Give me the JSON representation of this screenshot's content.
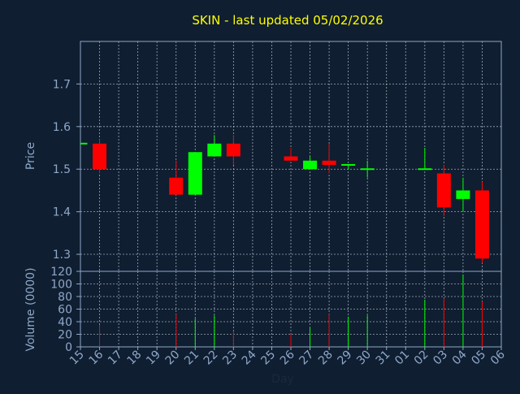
{
  "chart_data": {
    "type": "candlestick",
    "title": "SKIN - last updated 05/02/2026",
    "xlabel": "Day",
    "price_ylabel": "Price",
    "volume_ylabel": "Volume (0000)",
    "x_ticks": [
      "15",
      "16",
      "17",
      "18",
      "19",
      "20",
      "21",
      "22",
      "23",
      "24",
      "25",
      "26",
      "27",
      "28",
      "29",
      "30",
      "31",
      "01",
      "02",
      "03",
      "04",
      "05",
      "06"
    ],
    "price_ticks": [
      1.3,
      1.4,
      1.5,
      1.6,
      1.7
    ],
    "price_ylim": [
      1.26,
      1.8
    ],
    "volume_ticks": [
      0,
      20,
      40,
      60,
      80,
      100,
      120
    ],
    "volume_ylim": [
      0,
      120
    ],
    "grid": true,
    "colors": {
      "background": "#0f1e31",
      "title": "#ffff00",
      "axis_text": "#8fa8c8",
      "axis_line": "#8fa8c8",
      "grid": "#d0d8e0",
      "up": "#00ff00",
      "down": "#ff0000"
    },
    "candles": [
      {
        "day": "15",
        "open": 1.56,
        "high": 1.56,
        "low": 1.56,
        "close": 1.56,
        "volume": 0
      },
      {
        "day": "16",
        "open": 1.56,
        "high": 1.57,
        "low": 1.49,
        "close": 1.5,
        "volume": 35
      },
      {
        "day": "20",
        "open": 1.48,
        "high": 1.52,
        "low": 1.44,
        "close": 1.44,
        "volume": 52
      },
      {
        "day": "21",
        "open": 1.44,
        "high": 1.54,
        "low": 1.44,
        "close": 1.54,
        "volume": 45
      },
      {
        "day": "22",
        "open": 1.53,
        "high": 1.58,
        "low": 1.53,
        "close": 1.56,
        "volume": 50
      },
      {
        "day": "23",
        "open": 1.56,
        "high": 1.58,
        "low": 1.51,
        "close": 1.53,
        "volume": 25
      },
      {
        "day": "26",
        "open": 1.53,
        "high": 1.55,
        "low": 1.52,
        "close": 1.52,
        "volume": 20
      },
      {
        "day": "27",
        "open": 1.5,
        "high": 1.53,
        "low": 1.5,
        "close": 1.52,
        "volume": 30
      },
      {
        "day": "28",
        "open": 1.52,
        "high": 1.56,
        "low": 1.49,
        "close": 1.51,
        "volume": 52
      },
      {
        "day": "29",
        "open": 1.51,
        "high": 1.51,
        "low": 1.5,
        "close": 1.51,
        "volume": 48
      },
      {
        "day": "30",
        "open": 1.5,
        "high": 1.52,
        "low": 1.48,
        "close": 1.5,
        "volume": 50
      },
      {
        "day": "02",
        "open": 1.5,
        "high": 1.55,
        "low": 1.5,
        "close": 1.5,
        "volume": 75
      },
      {
        "day": "03",
        "open": 1.49,
        "high": 1.51,
        "low": 1.39,
        "close": 1.41,
        "volume": 77
      },
      {
        "day": "04",
        "open": 1.43,
        "high": 1.48,
        "low": 1.4,
        "close": 1.45,
        "volume": 115
      },
      {
        "day": "05",
        "open": 1.45,
        "high": 1.47,
        "low": 1.28,
        "close": 1.29,
        "volume": 72
      }
    ]
  }
}
